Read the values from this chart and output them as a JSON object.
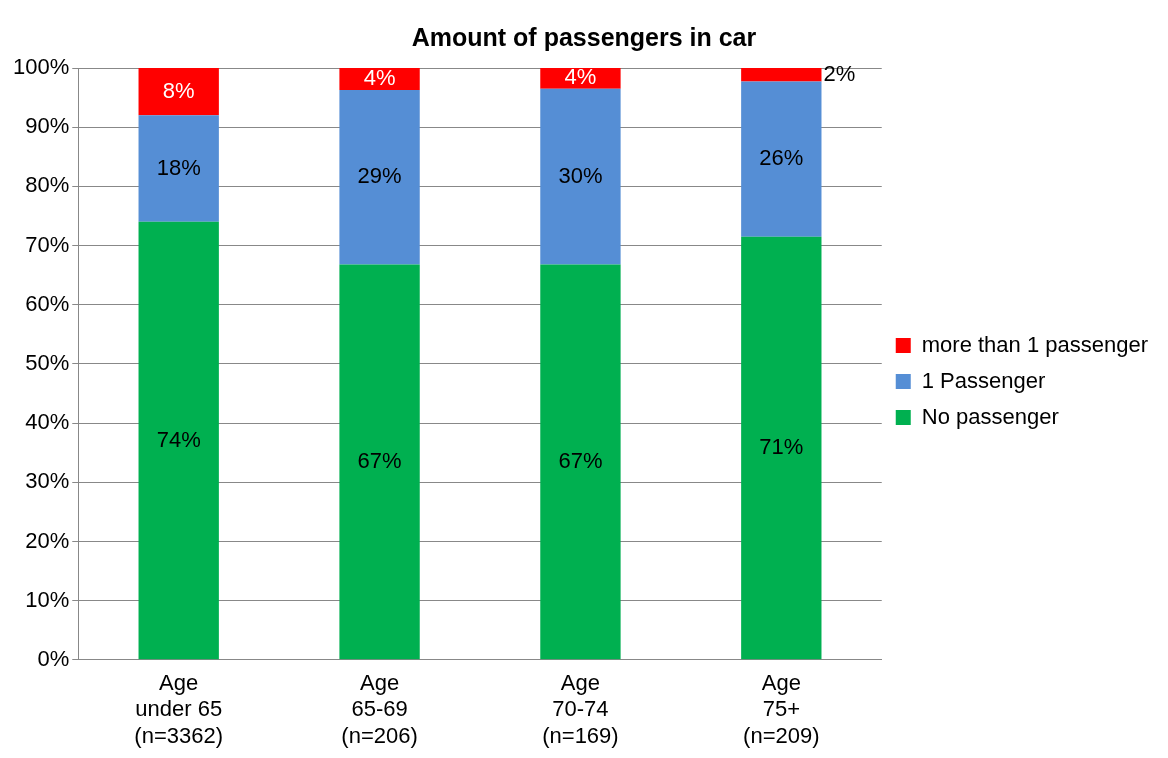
{
  "chart_data": {
    "type": "bar",
    "title": "Amount of passengers in car",
    "categories": [
      "Age\nunder 65\n(n=3362)",
      "Age\n65-69\n(n=206)",
      "Age\n70-74\n(n=169)",
      "Age\n75+\n(n=209)"
    ],
    "stacked": true,
    "series": [
      {
        "name": "No passenger",
        "color": "#00b050",
        "values": [
          74,
          66.8,
          66.8,
          71.5
        ],
        "value_labels": [
          "74%",
          "67%",
          "67%",
          "71%"
        ]
      },
      {
        "name": "1 Passenger",
        "color": "#558ed5",
        "values": [
          18,
          29.5,
          29.7,
          26.2
        ],
        "value_labels": [
          "18%",
          "29%",
          "30%",
          "26%"
        ]
      },
      {
        "name": "more than 1 passenger",
        "color": "#ff0000",
        "values": [
          8,
          3.7,
          3.5,
          2.3
        ],
        "value_labels": [
          "8%",
          "4%",
          "4%",
          "2%"
        ]
      }
    ],
    "ylim": [
      0,
      100
    ],
    "yticks": [
      {
        "value": 0,
        "label": "0%"
      },
      {
        "value": 10,
        "label": "10%"
      },
      {
        "value": 20,
        "label": "20%"
      },
      {
        "value": 30,
        "label": "30%"
      },
      {
        "value": 40,
        "label": "40%"
      },
      {
        "value": 50,
        "label": "50%"
      },
      {
        "value": 60,
        "label": "60%"
      },
      {
        "value": 70,
        "label": "70%"
      },
      {
        "value": 80,
        "label": "80%"
      },
      {
        "value": 90,
        "label": "90%"
      },
      {
        "value": 100,
        "label": "100%"
      }
    ],
    "grid": "y",
    "legend": "right"
  }
}
